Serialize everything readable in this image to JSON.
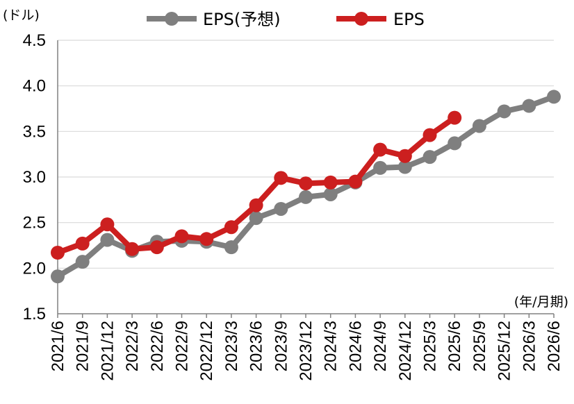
{
  "chart_data": {
    "type": "line",
    "y_unit_label": "(ドル)",
    "x_unit_label": "(年/月期)",
    "categories": [
      "2021/6",
      "2021/9",
      "2021/12",
      "2022/3",
      "2022/6",
      "2022/9",
      "2022/12",
      "2023/3",
      "2023/6",
      "2023/9",
      "2023/12",
      "2024/3",
      "2024/6",
      "2024/9",
      "2024/12",
      "2025/3",
      "2025/6",
      "2025/9",
      "2025/12",
      "2026/3",
      "2026/6"
    ],
    "ylim": [
      1.5,
      4.5
    ],
    "yticks": [
      "1.5",
      "2.0",
      "2.5",
      "3.0",
      "3.5",
      "4.0",
      "4.5"
    ],
    "grid": true,
    "legend_position": "top-center",
    "series": [
      {
        "name": "EPS(予想)",
        "color": "#7f7f7f",
        "values": [
          1.91,
          2.07,
          2.31,
          2.19,
          2.29,
          2.3,
          2.29,
          2.23,
          2.55,
          2.65,
          2.78,
          2.81,
          2.94,
          3.1,
          3.11,
          3.22,
          3.37,
          3.56,
          3.72,
          3.78,
          3.88
        ]
      },
      {
        "name": "EPS",
        "color": "#cc1f1f",
        "values": [
          2.17,
          2.27,
          2.48,
          2.21,
          2.23,
          2.35,
          2.32,
          2.45,
          2.69,
          2.99,
          2.93,
          2.94,
          2.95,
          3.3,
          3.23,
          3.46,
          3.65,
          null,
          null,
          null,
          null
        ]
      }
    ]
  }
}
